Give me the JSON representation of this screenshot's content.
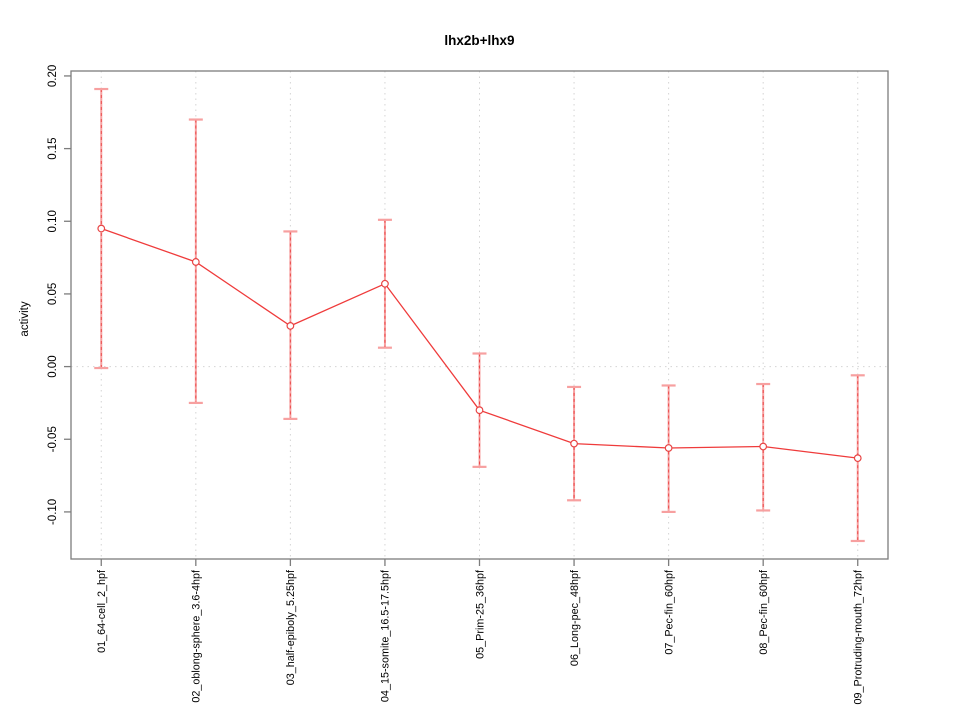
{
  "chart_data": {
    "type": "line",
    "title": "lhx2b+lhx9",
    "xlabel": "",
    "ylabel": "activity",
    "categories": [
      "01_64-cell_2_hpf",
      "02_oblong-sphere_3.6-4hpf",
      "03_half-epiboly_5.25hpf",
      "04_15-somite_16.5-17.5hpf",
      "05_Prim-25_36hpf",
      "06_Long-pec_48hpf",
      "07_Pec-fin_60hpf",
      "08_Pec-fin_60hpf",
      "09_Protruding-mouth_72hpf"
    ],
    "series": [
      {
        "name": "lhx2b+lhx9",
        "values": [
          0.095,
          0.072,
          0.028,
          0.057,
          -0.03,
          -0.053,
          -0.056,
          -0.055,
          -0.063
        ],
        "upper": [
          0.191,
          0.17,
          0.093,
          0.101,
          0.009,
          -0.014,
          -0.013,
          -0.012,
          -0.006
        ],
        "lower": [
          -0.001,
          -0.025,
          -0.036,
          0.013,
          -0.069,
          -0.092,
          -0.1,
          -0.099,
          -0.12
        ]
      }
    ],
    "yticks": [
      0.2,
      0.15,
      0.1,
      0.05,
      0.0,
      -0.05,
      -0.1
    ],
    "ylim": [
      -0.1324,
      0.2034
    ],
    "xlim": [
      0.68,
      9.32
    ],
    "grid": {
      "vertical_dotted": true,
      "zero_line_dotted": true,
      "legend": "none"
    },
    "marker": "open-circle",
    "colors": {
      "series_line": "#ef3b3b",
      "marker_stroke": "#e84545",
      "error_bar": "#f7a0a0",
      "error_dash": "#ea4a4a",
      "grid": "#d4d4d4",
      "frame": "#7d7d7d",
      "text": "#000000"
    }
  }
}
